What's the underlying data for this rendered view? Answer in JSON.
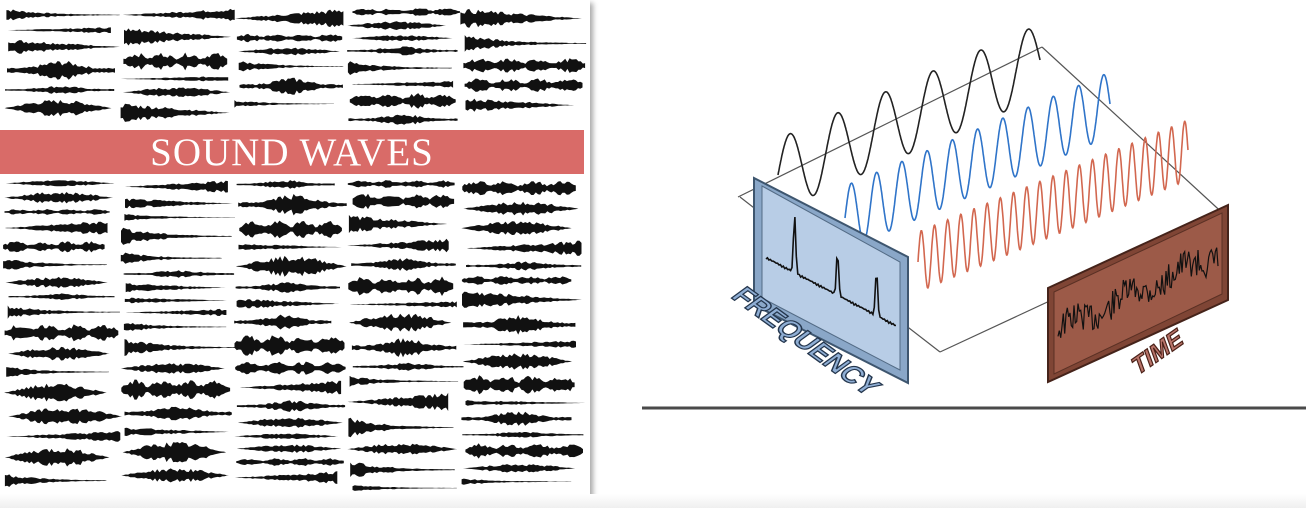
{
  "poster": {
    "title": "SOUND WAVES",
    "banner_color": "#d96b68",
    "wave_color": "#111111"
  },
  "diagram": {
    "frequency_label": "FREQUENCY",
    "time_label": "TIME",
    "wave_colors": [
      "#222222",
      "#2f74c9",
      "#d2674f"
    ],
    "frequency_panel_color": "#b8cde6",
    "time_panel_color": "#9c5a48"
  }
}
